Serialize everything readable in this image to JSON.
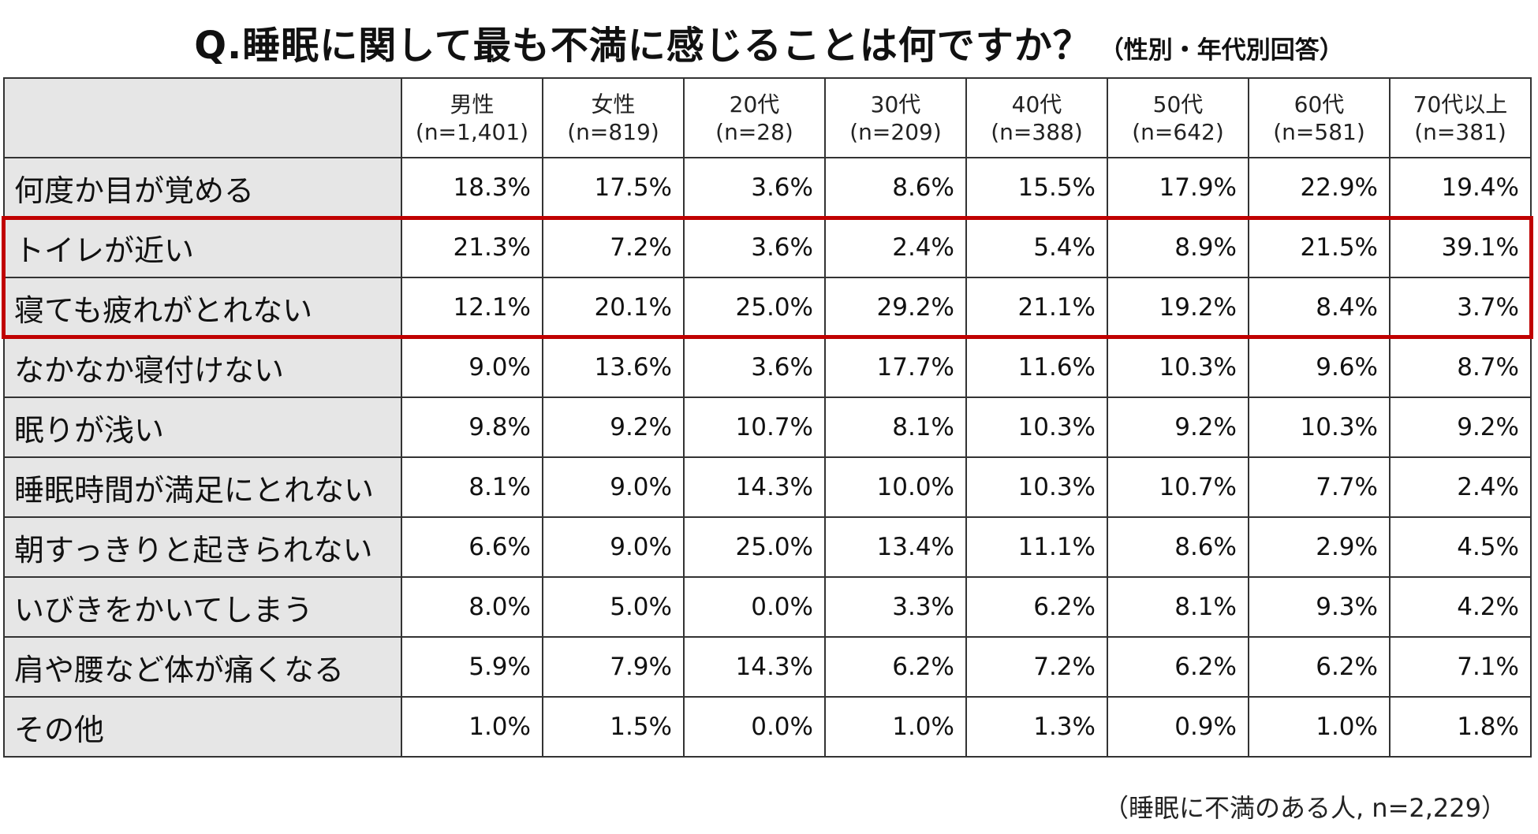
{
  "title": {
    "main": "Q.睡眠に関して最も不満に感じることは何ですか？",
    "sub": "（性別・年代別回答）"
  },
  "footnote": "（睡眠に不満のある人, n=2,229）",
  "colors": {
    "label_bg": "#e6e6e6",
    "border": "#333333",
    "highlight": "#c00000"
  },
  "chart_data": {
    "type": "table",
    "title": "Q.睡眠に関して最も不満に感じることは何ですか？（性別・年代別回答）",
    "columns": [
      {
        "name": "男性",
        "n": "(n=1,401)"
      },
      {
        "name": "女性",
        "n": "(n=819)"
      },
      {
        "name": "20代",
        "n": "(n=28)"
      },
      {
        "name": "30代",
        "n": "(n=209)"
      },
      {
        "name": "40代",
        "n": "(n=388)"
      },
      {
        "name": "50代",
        "n": "(n=642)"
      },
      {
        "name": "60代",
        "n": "(n=581)"
      },
      {
        "name": "70代以上",
        "n": "(n=381)"
      }
    ],
    "rows": [
      {
        "label": "何度か目が覚める",
        "values": [
          "18.3%",
          "17.5%",
          "3.6%",
          "8.6%",
          "15.5%",
          "17.9%",
          "22.9%",
          "19.4%"
        ]
      },
      {
        "label": "トイレが近い",
        "values": [
          "21.3%",
          "7.2%",
          "3.6%",
          "2.4%",
          "5.4%",
          "8.9%",
          "21.5%",
          "39.1%"
        ]
      },
      {
        "label": "寝ても疲れがとれない",
        "values": [
          "12.1%",
          "20.1%",
          "25.0%",
          "29.2%",
          "21.1%",
          "19.2%",
          "8.4%",
          "3.7%"
        ]
      },
      {
        "label": "なかなか寝付けない",
        "values": [
          "9.0%",
          "13.6%",
          "3.6%",
          "17.7%",
          "11.6%",
          "10.3%",
          "9.6%",
          "8.7%"
        ]
      },
      {
        "label": "眠りが浅い",
        "values": [
          "9.8%",
          "9.2%",
          "10.7%",
          "8.1%",
          "10.3%",
          "9.2%",
          "10.3%",
          "9.2%"
        ]
      },
      {
        "label": "睡眠時間が満足にとれない",
        "values": [
          "8.1%",
          "9.0%",
          "14.3%",
          "10.0%",
          "10.3%",
          "10.7%",
          "7.7%",
          "2.4%"
        ]
      },
      {
        "label": "朝すっきりと起きられない",
        "values": [
          "6.6%",
          "9.0%",
          "25.0%",
          "13.4%",
          "11.1%",
          "8.6%",
          "2.9%",
          "4.5%"
        ]
      },
      {
        "label": "いびきをかいてしまう",
        "values": [
          "8.0%",
          "5.0%",
          "0.0%",
          "3.3%",
          "6.2%",
          "8.1%",
          "9.3%",
          "4.2%"
        ]
      },
      {
        "label": "肩や腰など体が痛くなる",
        "values": [
          "5.9%",
          "7.9%",
          "14.3%",
          "6.2%",
          "7.2%",
          "6.2%",
          "6.2%",
          "7.1%"
        ]
      },
      {
        "label": "その他",
        "values": [
          "1.0%",
          "1.5%",
          "0.0%",
          "1.0%",
          "1.3%",
          "0.9%",
          "1.0%",
          "1.8%"
        ]
      }
    ],
    "highlighted_rows": [
      1,
      2
    ]
  }
}
